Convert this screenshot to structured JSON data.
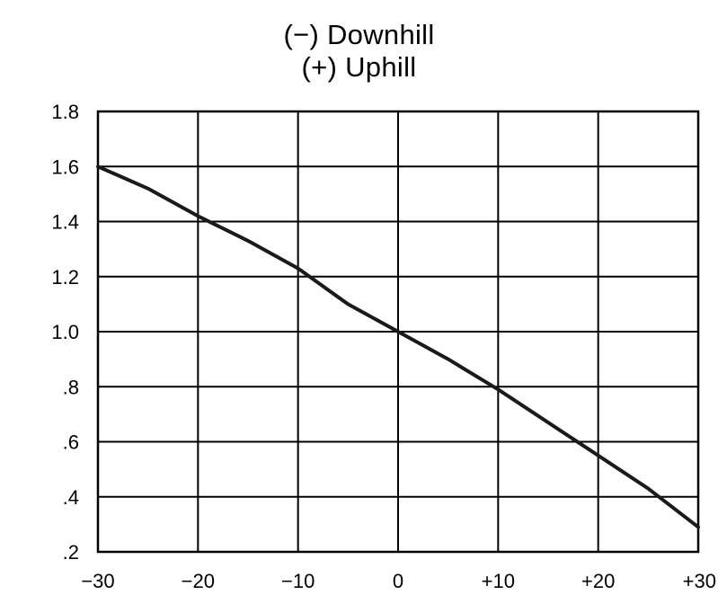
{
  "chart_data": {
    "type": "line",
    "title_lines": [
      "(−) Downhill",
      "(+) Uphill"
    ],
    "xlabel": "",
    "ylabel": "",
    "x_ticks": [
      "−30",
      "−20",
      "−10",
      "0",
      "+10",
      "+20",
      "+30"
    ],
    "y_ticks": [
      ".2",
      ".4",
      ".6",
      ".8",
      "1.0",
      "1.2",
      "1.4",
      "1.6",
      "1.8"
    ],
    "xlim": [
      -30,
      30
    ],
    "ylim": [
      0.2,
      1.8
    ],
    "grid": true,
    "legend": "none",
    "line_color": "#1a1a1a",
    "series": [
      {
        "x": [
          -30,
          -25,
          -20,
          -15,
          -10,
          -5,
          0,
          5,
          10,
          15,
          20,
          25,
          30
        ],
        "y": [
          1.6,
          1.52,
          1.42,
          1.33,
          1.23,
          1.1,
          1.0,
          0.9,
          0.79,
          0.67,
          0.55,
          0.43,
          0.29
        ]
      }
    ]
  }
}
